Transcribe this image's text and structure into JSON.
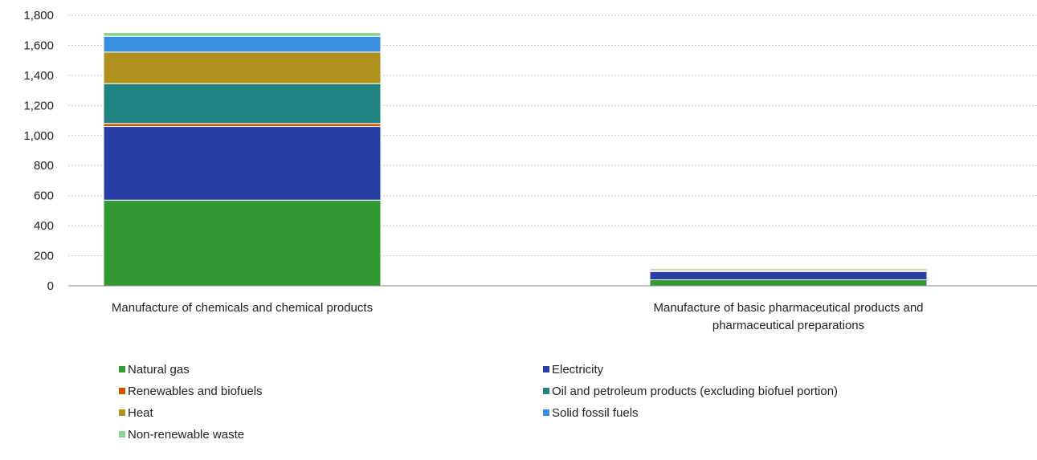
{
  "chart_data": {
    "type": "bar",
    "stacked": true,
    "title": "",
    "xlabel": "",
    "ylabel": "",
    "ylim": [
      0,
      1800
    ],
    "yticks": [
      0,
      200,
      400,
      600,
      800,
      1000,
      1200,
      1400,
      1600,
      1800
    ],
    "ytick_labels": [
      "0",
      "200",
      "400",
      "600",
      "800",
      "1,000",
      "1,200",
      "1,400",
      "1,600",
      "1,800"
    ],
    "grid": true,
    "legend_position": "bottom",
    "categories": [
      [
        "Manufacture of chemicals and chemical products"
      ],
      [
        "Manufacture of basic pharmaceutical products and",
        "pharmaceutical preparations"
      ]
    ],
    "series": [
      {
        "name": "Natural gas",
        "color": "#339933",
        "values": [
          570,
          40
        ]
      },
      {
        "name": "Electricity",
        "color": "#2a3fa5",
        "values": [
          490,
          55
        ]
      },
      {
        "name": "Renewables and biofuels",
        "color": "#d35400",
        "values": [
          20,
          2
        ]
      },
      {
        "name": "Oil and petroleum products (excluding biofuel portion)",
        "color": "#218382",
        "values": [
          265,
          5
        ]
      },
      {
        "name": "Heat",
        "color": "#b0901f",
        "values": [
          210,
          10
        ]
      },
      {
        "name": "Solid fossil fuels",
        "color": "#3a8fe0",
        "values": [
          105,
          1
        ]
      },
      {
        "name": "Non-renewable waste",
        "color": "#8fd48f",
        "values": [
          25,
          1
        ]
      }
    ]
  }
}
